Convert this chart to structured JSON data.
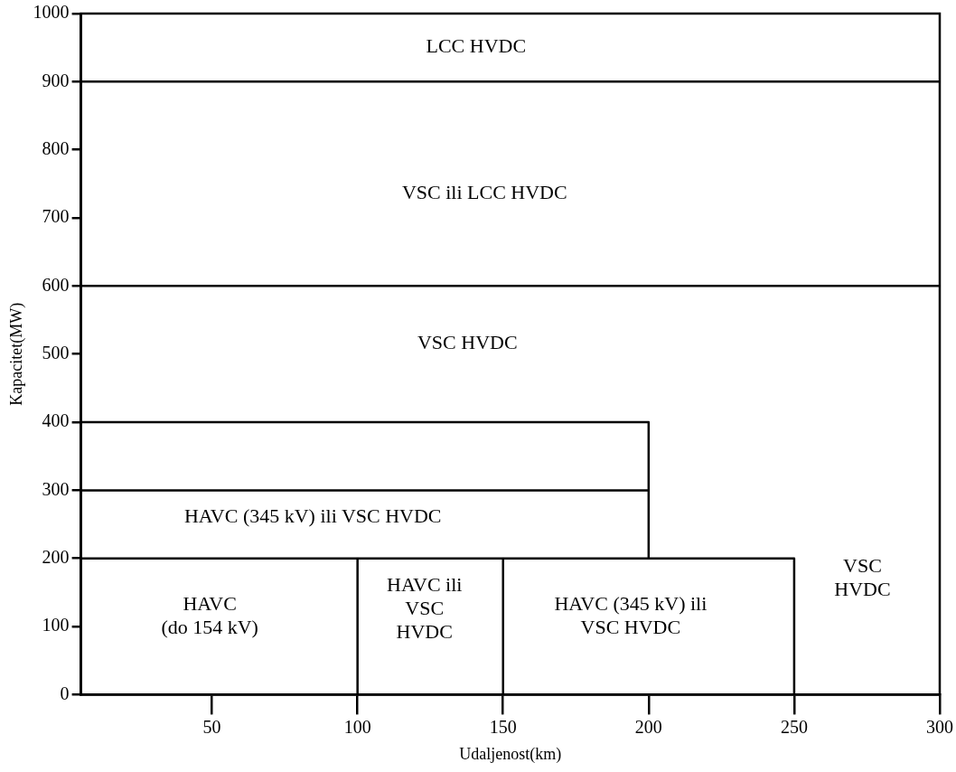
{
  "chart_data": {
    "type": "line",
    "xlabel": "Udaljenost(km)",
    "ylabel": "Kapacitet(MW)",
    "xlim": [
      5,
      300
    ],
    "xticks": [
      50,
      100,
      150,
      200,
      250,
      300
    ],
    "ylim": [
      0,
      1000
    ],
    "yticks": [
      0,
      100,
      200,
      300,
      400,
      500,
      600,
      700,
      800,
      900,
      1000
    ],
    "grid": false,
    "legend": false,
    "marker": "none",
    "line_style": "solid",
    "series": [
      {
        "color": "#000000",
        "x": [
          5,
          200,
          200
        ],
        "values": [
          400,
          400,
          200
        ]
      },
      {
        "color": "#000000",
        "x": [
          5,
          200
        ],
        "values": [
          300,
          300
        ]
      },
      {
        "color": "#000000",
        "x": [
          5,
          250,
          250
        ],
        "values": [
          200,
          200,
          0
        ]
      },
      {
        "color": "#000000",
        "x": [
          100,
          100
        ],
        "values": [
          0,
          200
        ]
      },
      {
        "color": "#000000",
        "x": [
          150,
          150
        ],
        "values": [
          0,
          200
        ]
      }
    ],
    "ref_lines": [
      {
        "axis": "y",
        "value": 900,
        "color": "#000000"
      },
      {
        "axis": "y",
        "value": 600,
        "color": "#000000"
      }
    ],
    "annotations": [
      "LCC HVDC",
      "VSC ili LCC HVDC",
      "VSC HVDC",
      "HAVC (345 kV) ili VSC HVDC",
      "HAVC\n(do 154 kV)",
      "HAVC ili\nVSC\nHVDC",
      "HAVC (345 kV) ili\nVSC HVDC",
      "VSC\nHVDC"
    ]
  }
}
